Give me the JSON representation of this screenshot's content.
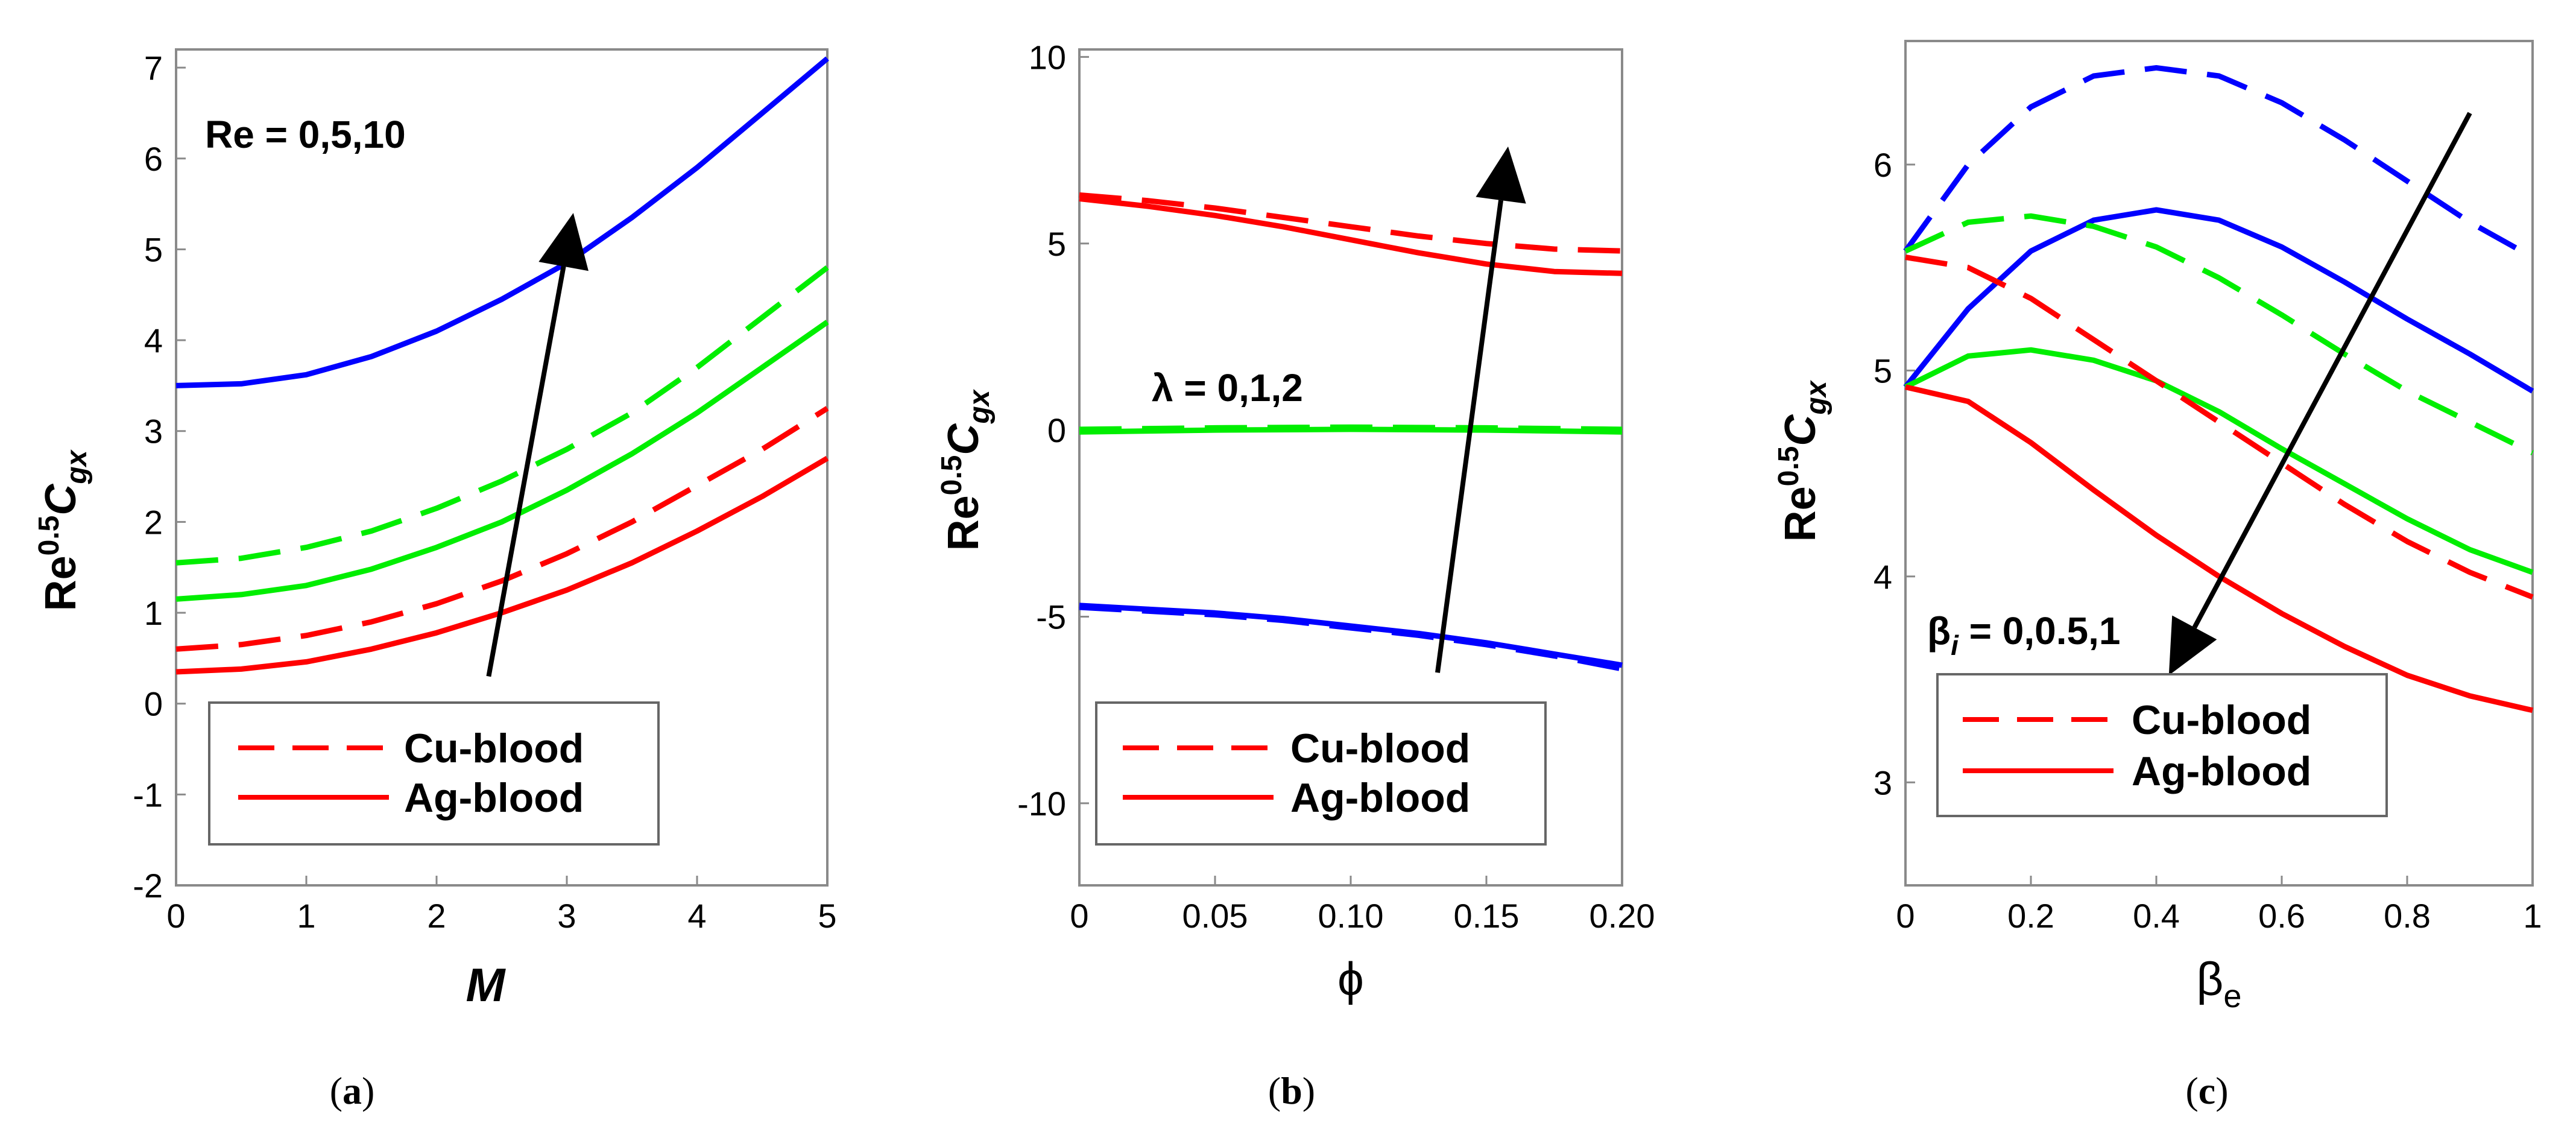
{
  "chart_data": [
    {
      "type": "line",
      "caption_letter": "a",
      "caption_open": "(",
      "caption_close": ")",
      "x_label": "M",
      "y_label_base": "Re",
      "y_label_sup": "0.5",
      "y_label_main": "C",
      "y_label_sub": "gx",
      "annotation": "Re = 0,5,10",
      "xlim": [
        0,
        5
      ],
      "ylim": [
        -2,
        7.2
      ],
      "x_ticks": [
        0,
        1,
        2,
        3,
        4,
        5
      ],
      "x_tick_labels": [
        "0",
        "1",
        "2",
        "3",
        "4",
        "5"
      ],
      "y_ticks": [
        -2,
        -1,
        0,
        1,
        2,
        3,
        4,
        5,
        6,
        7
      ],
      "y_tick_labels": [
        "-2",
        "-1",
        "0",
        "1",
        "2",
        "3",
        "4",
        "5",
        "6",
        "7"
      ],
      "legend": [
        {
          "label": "Cu-blood",
          "dash": true
        },
        {
          "label": "Ag-blood",
          "dash": false
        }
      ],
      "arrow": {
        "from": [
          2.4,
          0.3
        ],
        "to": [
          3.05,
          5.4
        ]
      },
      "series": [
        {
          "name": "Re=10 Ag-blood",
          "color": "#0000ff",
          "dash": false,
          "x": [
            0,
            0.5,
            1,
            1.5,
            2,
            2.5,
            3,
            3.5,
            4,
            4.5,
            5
          ],
          "y": [
            3.5,
            3.52,
            3.62,
            3.82,
            4.1,
            4.45,
            4.85,
            5.35,
            5.9,
            6.5,
            7.1
          ]
        },
        {
          "name": "Re=5 Cu-blood",
          "color": "#00ee00",
          "dash": true,
          "x": [
            0,
            0.5,
            1,
            1.5,
            2,
            2.5,
            3,
            3.5,
            4,
            4.5,
            5
          ],
          "y": [
            1.55,
            1.6,
            1.72,
            1.9,
            2.15,
            2.45,
            2.8,
            3.2,
            3.7,
            4.25,
            4.8
          ]
        },
        {
          "name": "Re=5 Ag-blood",
          "color": "#00ee00",
          "dash": false,
          "x": [
            0,
            0.5,
            1,
            1.5,
            2,
            2.5,
            3,
            3.5,
            4,
            4.5,
            5
          ],
          "y": [
            1.15,
            1.2,
            1.3,
            1.48,
            1.72,
            2.0,
            2.35,
            2.75,
            3.2,
            3.7,
            4.2
          ]
        },
        {
          "name": "Re=0 Cu-blood",
          "color": "#ff0000",
          "dash": true,
          "x": [
            0,
            0.5,
            1,
            1.5,
            2,
            2.5,
            3,
            3.5,
            4,
            4.5,
            5
          ],
          "y": [
            0.6,
            0.65,
            0.75,
            0.9,
            1.1,
            1.35,
            1.65,
            2.0,
            2.4,
            2.8,
            3.25
          ]
        },
        {
          "name": "Re=0 Ag-blood",
          "color": "#ff0000",
          "dash": false,
          "x": [
            0,
            0.5,
            1,
            1.5,
            2,
            2.5,
            3,
            3.5,
            4,
            4.5,
            5
          ],
          "y": [
            0.35,
            0.38,
            0.46,
            0.6,
            0.78,
            1.0,
            1.25,
            1.55,
            1.9,
            2.28,
            2.7
          ]
        }
      ]
    },
    {
      "type": "line",
      "caption_letter": "b",
      "caption_open": "(",
      "caption_close": ")",
      "x_label": "ϕ",
      "y_label_base": "Re",
      "y_label_sup": "0.5",
      "y_label_main": "C",
      "y_label_sub": "gx",
      "annotation": "λ = 0,1,2",
      "xlim": [
        0,
        0.2
      ],
      "ylim": [
        -12.2,
        10.2
      ],
      "x_ticks": [
        0,
        0.05,
        0.1,
        0.15,
        0.2
      ],
      "x_tick_labels": [
        "0",
        "0.05",
        "0.10",
        "0.15",
        "0.20"
      ],
      "y_ticks": [
        -10,
        -5,
        0,
        5,
        10
      ],
      "y_tick_labels": [
        "-10",
        "-5",
        "0",
        "5",
        "10"
      ],
      "legend": [
        {
          "label": "Cu-blood",
          "dash": true
        },
        {
          "label": "Ag-blood",
          "dash": false
        }
      ],
      "arrow": {
        "from": [
          0.132,
          -6.5
        ],
        "to": [
          0.158,
          7.6
        ]
      },
      "series": [
        {
          "name": "λ=0 Cu-blood",
          "color": "#ff0000",
          "dash": true,
          "x": [
            0,
            0.025,
            0.05,
            0.075,
            0.1,
            0.125,
            0.15,
            0.175,
            0.2
          ],
          "y": [
            6.3,
            6.15,
            5.95,
            5.7,
            5.45,
            5.2,
            5.0,
            4.85,
            4.8
          ]
        },
        {
          "name": "λ=0 Ag-blood",
          "color": "#ff0000",
          "dash": false,
          "x": [
            0,
            0.025,
            0.05,
            0.075,
            0.1,
            0.125,
            0.15,
            0.175,
            0.2
          ],
          "y": [
            6.2,
            6.0,
            5.75,
            5.45,
            5.1,
            4.75,
            4.45,
            4.25,
            4.2
          ]
        },
        {
          "name": "λ=1 Cu-blood",
          "color": "#00ee00",
          "dash": true,
          "x": [
            0,
            0.05,
            0.1,
            0.15,
            0.2
          ],
          "y": [
            0.02,
            0.06,
            0.08,
            0.06,
            0.02
          ]
        },
        {
          "name": "λ=1 Ag-blood",
          "color": "#00ee00",
          "dash": false,
          "x": [
            0,
            0.05,
            0.1,
            0.15,
            0.2
          ],
          "y": [
            -0.05,
            0.0,
            0.02,
            0.0,
            -0.05
          ]
        },
        {
          "name": "λ=2 Cu-blood",
          "color": "#0000ff",
          "dash": true,
          "x": [
            0,
            0.025,
            0.05,
            0.075,
            0.1,
            0.125,
            0.15,
            0.175,
            0.2
          ],
          "y": [
            -4.75,
            -4.85,
            -4.95,
            -5.1,
            -5.3,
            -5.5,
            -5.75,
            -6.05,
            -6.4
          ]
        },
        {
          "name": "λ=2 Ag-blood",
          "color": "#0000ff",
          "dash": false,
          "x": [
            0,
            0.025,
            0.05,
            0.075,
            0.1,
            0.125,
            0.15,
            0.175,
            0.2
          ],
          "y": [
            -4.7,
            -4.8,
            -4.9,
            -5.05,
            -5.25,
            -5.45,
            -5.7,
            -6.0,
            -6.3
          ]
        }
      ]
    },
    {
      "type": "line",
      "caption_letter": "c",
      "caption_open": "(",
      "caption_close": ")",
      "x_label_base": "β",
      "x_label_sub": "e",
      "y_label_base": "Re",
      "y_label_sup": "0.5",
      "y_label_main": "C",
      "y_label_sub": "gx",
      "annotation_base": "β",
      "annotation_sub": "i",
      "annotation_rest": " = 0,0.5,1",
      "xlim": [
        0,
        1
      ],
      "ylim": [
        2.5,
        6.6
      ],
      "x_ticks": [
        0,
        0.2,
        0.4,
        0.6,
        0.8,
        1
      ],
      "x_tick_labels": [
        "0",
        "0.2",
        "0.4",
        "0.6",
        "0.8",
        "1"
      ],
      "y_ticks": [
        3,
        4,
        5,
        6
      ],
      "y_tick_labels": [
        "3",
        "4",
        "5",
        "6"
      ],
      "legend": [
        {
          "label": "Cu-blood",
          "dash": true
        },
        {
          "label": "Ag-blood",
          "dash": false
        }
      ],
      "arrow": {
        "from": [
          0.9,
          6.25
        ],
        "to": [
          0.42,
          3.52
        ]
      },
      "series": [
        {
          "name": "βi=0 Cu-blood",
          "color": "#0000ff",
          "dash": true,
          "x": [
            0,
            0.1,
            0.2,
            0.3,
            0.4,
            0.5,
            0.6,
            0.7,
            0.8,
            0.9,
            1
          ],
          "y": [
            5.58,
            6.0,
            6.28,
            6.43,
            6.47,
            6.43,
            6.3,
            6.12,
            5.92,
            5.72,
            5.55
          ]
        },
        {
          "name": "βi=0 Ag-blood",
          "color": "#0000ff",
          "dash": false,
          "x": [
            0,
            0.1,
            0.2,
            0.3,
            0.4,
            0.5,
            0.6,
            0.7,
            0.8,
            0.9,
            1
          ],
          "y": [
            4.92,
            5.3,
            5.58,
            5.73,
            5.78,
            5.73,
            5.6,
            5.43,
            5.25,
            5.08,
            4.9
          ]
        },
        {
          "name": "βi=0.5 Cu-blood",
          "color": "#00ee00",
          "dash": true,
          "x": [
            0,
            0.1,
            0.2,
            0.3,
            0.4,
            0.5,
            0.6,
            0.7,
            0.8,
            0.9,
            1
          ],
          "y": [
            5.58,
            5.72,
            5.75,
            5.7,
            5.6,
            5.45,
            5.27,
            5.08,
            4.9,
            4.75,
            4.6
          ]
        },
        {
          "name": "βi=0.5 Ag-blood",
          "color": "#00ee00",
          "dash": false,
          "x": [
            0,
            0.1,
            0.2,
            0.3,
            0.4,
            0.5,
            0.6,
            0.7,
            0.8,
            0.9,
            1
          ],
          "y": [
            4.92,
            5.07,
            5.1,
            5.05,
            4.95,
            4.8,
            4.62,
            4.45,
            4.28,
            4.13,
            4.02
          ]
        },
        {
          "name": "βi=1 Cu-blood",
          "color": "#ff0000",
          "dash": true,
          "x": [
            0,
            0.1,
            0.2,
            0.3,
            0.4,
            0.5,
            0.6,
            0.7,
            0.8,
            0.9,
            1
          ],
          "y": [
            5.55,
            5.5,
            5.35,
            5.15,
            4.95,
            4.75,
            4.55,
            4.35,
            4.17,
            4.02,
            3.9
          ]
        },
        {
          "name": "βi=1 Ag-blood",
          "color": "#ff0000",
          "dash": false,
          "x": [
            0,
            0.1,
            0.2,
            0.3,
            0.4,
            0.5,
            0.6,
            0.7,
            0.8,
            0.9,
            1
          ],
          "y": [
            4.92,
            4.85,
            4.65,
            4.42,
            4.2,
            4.0,
            3.82,
            3.66,
            3.52,
            3.42,
            3.35
          ]
        }
      ]
    }
  ]
}
